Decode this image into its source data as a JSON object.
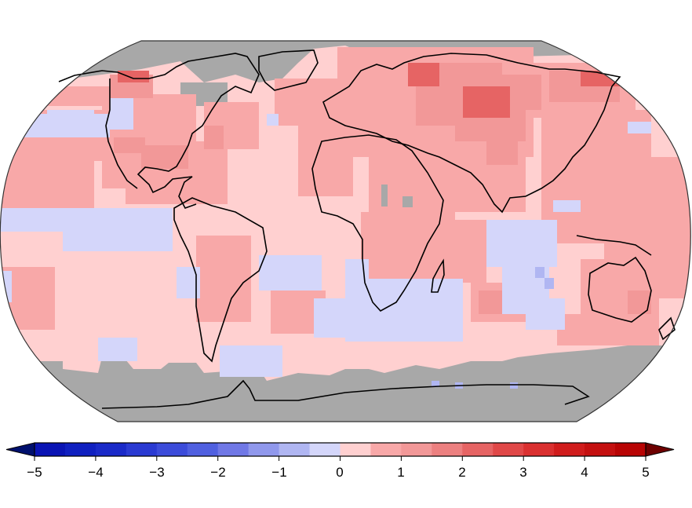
{
  "chart_data": {
    "type": "heatmap",
    "subtype": "global-temperature-anomaly-map",
    "projection": "Robinson",
    "title": "",
    "xlabel": "",
    "ylabel": "",
    "colorbar": {
      "orientation": "horizontal",
      "min": -5,
      "max": 5,
      "extend": "both",
      "ticks": [
        -5,
        -4,
        -3,
        -2,
        -1,
        0,
        1,
        2,
        3,
        4,
        5
      ],
      "tick_labels": [
        "−5",
        "−4",
        "−3",
        "−2",
        "−1",
        "0",
        "1",
        "2",
        "3",
        "4",
        "5"
      ],
      "bins": [
        {
          "from": -5.0,
          "to": -4.5,
          "color": "#0a14b4"
        },
        {
          "from": -4.5,
          "to": -4.0,
          "color": "#1020c0"
        },
        {
          "from": -4.0,
          "to": -3.5,
          "color": "#1a2ac8"
        },
        {
          "from": -3.5,
          "to": -3.0,
          "color": "#2a3ad2"
        },
        {
          "from": -3.0,
          "to": -2.5,
          "color": "#3c4cda"
        },
        {
          "from": -2.5,
          "to": -2.0,
          "color": "#5060e0"
        },
        {
          "from": -2.0,
          "to": -1.5,
          "color": "#7078e6"
        },
        {
          "from": -1.5,
          "to": -1.0,
          "color": "#9098ec"
        },
        {
          "from": -1.0,
          "to": -0.5,
          "color": "#b0b6f2"
        },
        {
          "from": -0.5,
          "to": 0.0,
          "color": "#d4d6fa"
        },
        {
          "from": 0.0,
          "to": 0.5,
          "color": "#ffd0d0"
        },
        {
          "from": 0.5,
          "to": 1.0,
          "color": "#f8a8a8"
        },
        {
          "from": 1.0,
          "to": 1.5,
          "color": "#f29898"
        },
        {
          "from": 1.5,
          "to": 2.0,
          "color": "#ec8080"
        },
        {
          "from": 2.0,
          "to": 2.5,
          "color": "#e66464"
        },
        {
          "from": 2.5,
          "to": 3.0,
          "color": "#e04848"
        },
        {
          "from": 3.0,
          "to": 3.5,
          "color": "#da3030"
        },
        {
          "from": 3.5,
          "to": 4.0,
          "color": "#d01c1c"
        },
        {
          "from": 4.0,
          "to": 4.5,
          "color": "#c41010"
        },
        {
          "from": 4.5,
          "to": 5.0,
          "color": "#b80404"
        }
      ],
      "under_color": "#00106e",
      "over_color": "#6e0000"
    },
    "missing_data_color": "#a8a8a8",
    "units_label_visible": "(truncated at bottom edge)",
    "regional_anomalies_estimated": [
      {
        "region": "Arctic / Greenland interior",
        "value": "missing"
      },
      {
        "region": "Antarctica",
        "value": "missing"
      },
      {
        "region": "Northern Alaska / Yukon",
        "value": 2.5
      },
      {
        "region": "Canada interior",
        "value": 1.0
      },
      {
        "region": "US Midwest / East",
        "value": 1.5
      },
      {
        "region": "NE Pacific patches",
        "value": -0.5
      },
      {
        "region": "Tropical eastern Pacific band",
        "value": -0.5
      },
      {
        "region": "Central North Pacific",
        "value": 1.0
      },
      {
        "region": "Europe",
        "value": 1.0
      },
      {
        "region": "Northern Siberia",
        "value": 2.0
      },
      {
        "region": "Mongolia / N China",
        "value": 2.0
      },
      {
        "region": "Far East Russia",
        "value": 2.5
      },
      {
        "region": "Middle East / Arabia",
        "value": 1.0
      },
      {
        "region": "North Africa",
        "value": 0.5
      },
      {
        "region": "Central & Southern Africa",
        "value": 1.0
      },
      {
        "region": "Tropical Indian Ocean",
        "value": -0.5
      },
      {
        "region": "Indonesia / W Pacific",
        "value": 1.0
      },
      {
        "region": "Australia",
        "value": 1.0
      },
      {
        "region": "South America interior",
        "value": 1.0
      },
      {
        "region": "South Atlantic",
        "value": -0.5
      },
      {
        "region": "Southern Ocean (S. of Africa)",
        "value": -0.5
      },
      {
        "region": "Southern Indian Ocean",
        "value": 1.5
      },
      {
        "region": "Global ocean background",
        "value": 0.5
      }
    ]
  },
  "colorbar_labels": {
    "t0": "−5",
    "t1": "−4",
    "t2": "−3",
    "t3": "−2",
    "t4": "−1",
    "t5": "0",
    "t6": "1",
    "t7": "2",
    "t8": "3",
    "t9": "4",
    "t10": "5"
  },
  "units_partial": ""
}
